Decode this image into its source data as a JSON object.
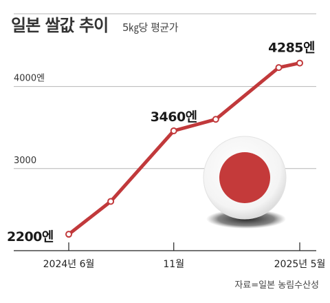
{
  "chart_data": {
    "type": "line",
    "title": "일본 쌀값 추이",
    "subtitle": "5㎏당 평균가",
    "x": [
      "2024-06",
      "2024-08",
      "2024-11",
      "2025-01",
      "2025-04",
      "2025-05"
    ],
    "x_tick_labels": [
      {
        "x": "2024-06",
        "label": "2024년 6월"
      },
      {
        "x": "2024-11",
        "label": "11월"
      },
      {
        "x": "2025-05",
        "label": "2025년 5월"
      }
    ],
    "series": [
      {
        "values": [
          2200,
          2600,
          3460,
          3600,
          4230,
          4285
        ]
      }
    ],
    "data_labels": [
      {
        "index": 0,
        "text": "2200엔"
      },
      {
        "index": 2,
        "text": "3460엔"
      },
      {
        "index": 5,
        "text": "4285엔"
      }
    ],
    "y_tick_labels": [
      {
        "value": 4000,
        "label": "4000엔"
      },
      {
        "value": 3000,
        "label": "3000"
      }
    ],
    "ylim": [
      2000,
      4550
    ],
    "grid": true,
    "source": "자료=일본 농림수산성",
    "colors": {
      "line": "#c1393b",
      "grid": "#b5b5b5",
      "flag_red": "#c43a3a"
    }
  }
}
